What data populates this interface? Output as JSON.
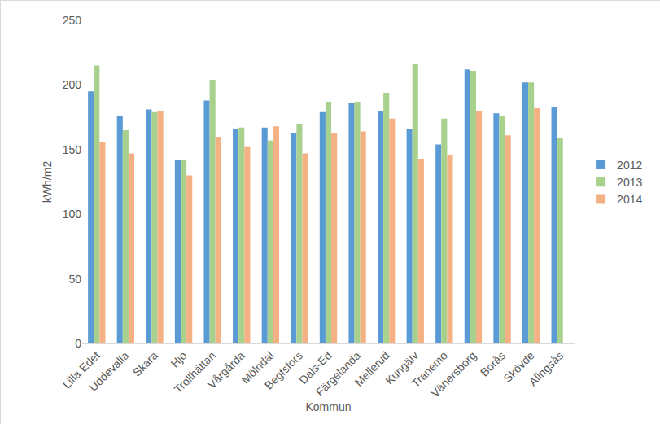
{
  "chart_data": {
    "type": "bar",
    "x_label": "Kommun",
    "y_label": "kWh/m2",
    "categories": [
      "Lilla Edet",
      "Uddevalla",
      "Skara",
      "Hjo",
      "Trollhättan",
      "Vårgårda",
      "Mölndal",
      "Begtsfors",
      "Dals-Ed",
      "Färgelanda",
      "Mellerud",
      "Kungälv",
      "Tranemo",
      "Vänersborg",
      "Borås",
      "Skövde",
      "Alingsås"
    ],
    "series": [
      {
        "name": "2012",
        "color": "#5b9bd5",
        "values": [
          195,
          176,
          181,
          142,
          188,
          166,
          167,
          163,
          179,
          186,
          180,
          166,
          154,
          212,
          178,
          202,
          183
        ]
      },
      {
        "name": "2013",
        "color": "#a9d18e",
        "values": [
          215,
          165,
          179,
          142,
          204,
          167,
          157,
          170,
          187,
          187,
          194,
          216,
          174,
          211,
          176,
          202,
          159
        ]
      },
      {
        "name": "2014",
        "color": "#f4b183",
        "values": [
          156,
          147,
          180,
          130,
          160,
          152,
          168,
          147,
          163,
          164,
          174,
          143,
          146,
          180,
          161,
          182,
          null
        ]
      }
    ],
    "ylim": [
      0,
      250
    ],
    "yticks": [
      0,
      50,
      100,
      150,
      200,
      250
    ],
    "grid": false,
    "legend": "right"
  }
}
